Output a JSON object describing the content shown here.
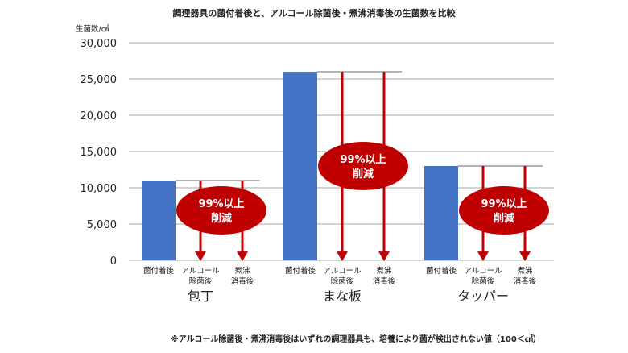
{
  "chart_data": {
    "type": "bar",
    "title": "調理器具の菌付着後と、アルコール除菌後・煮沸消毒後の生菌数を比較",
    "ylabel": "生菌数/㎠",
    "ylim": [
      0,
      30000
    ],
    "yticks": [
      0,
      5000,
      10000,
      15000,
      20000,
      25000,
      30000
    ],
    "ytick_labels": [
      "0",
      "5,000",
      "10,000",
      "15,000",
      "20,000",
      "25,000",
      "30,000"
    ],
    "grid": true,
    "groups": [
      {
        "name": "包丁",
        "categories": [
          "菌付着後",
          "アルコール\n除菌後",
          "煮沸\n消毒後"
        ],
        "values": [
          11000,
          100,
          100
        ],
        "annotation": "99%以上\n削減"
      },
      {
        "name": "まな板",
        "categories": [
          "菌付着後",
          "アルコール\n除菌後",
          "煮沸\n消毒後"
        ],
        "values": [
          26000,
          100,
          100
        ],
        "annotation": "99%以上\n削減"
      },
      {
        "name": "タッパー",
        "categories": [
          "菌付着後",
          "アルコール\n除菌後",
          "煮沸\n消毒後"
        ],
        "values": [
          13000,
          100,
          100
        ],
        "annotation": "99%以上\n削減"
      }
    ],
    "footnote": "※アルコール除菌後・煮沸消毒後はいずれの調理器具も、培養により菌が検出されない値（100＜㎠）",
    "colors": {
      "bar": "#4472C4",
      "arrow": "#C00000",
      "badge": "#C00000",
      "grid": "#A6A6A6"
    }
  }
}
